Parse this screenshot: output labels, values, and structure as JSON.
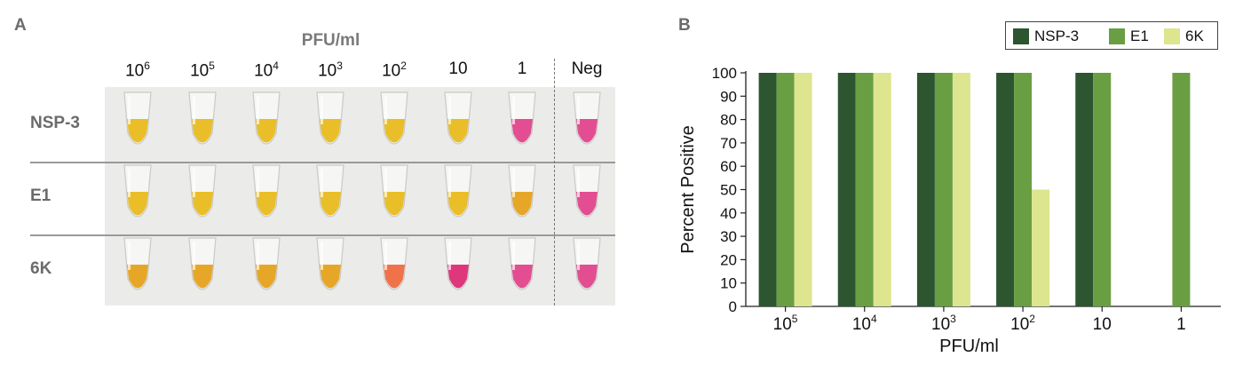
{
  "panel_a": {
    "letter": "A",
    "title": "PFU/ml",
    "columns": [
      {
        "base": "10",
        "exp": "6"
      },
      {
        "base": "10",
        "exp": "5"
      },
      {
        "base": "10",
        "exp": "4"
      },
      {
        "base": "10",
        "exp": "3"
      },
      {
        "base": "10",
        "exp": "2"
      },
      {
        "base": "10",
        "exp": ""
      },
      {
        "base": "1",
        "exp": ""
      },
      {
        "base": "Neg",
        "exp": ""
      }
    ],
    "rows": [
      "NSP-3",
      "E1",
      "6K"
    ],
    "tube_colors": [
      [
        "yellow",
        "yellow",
        "yellow",
        "yellow",
        "yellow",
        "yellow",
        "pink",
        "pink"
      ],
      [
        "yellow",
        "yellow",
        "yellow",
        "yellow",
        "yellow",
        "yellow",
        "orange",
        "pink"
      ],
      [
        "orange",
        "orange",
        "orange",
        "orange",
        "red-orange",
        "magenta",
        "pink",
        "pink"
      ]
    ],
    "colors": {
      "yellow": "#e8bb1c",
      "orange": "#e5a21e",
      "red-orange": "#ef6a40",
      "magenta": "#dd2c75",
      "pink": "#e0458b"
    }
  },
  "panel_b": {
    "letter": "B"
  },
  "chart_data": {
    "type": "bar",
    "categories": [
      {
        "base": "10",
        "exp": "5"
      },
      {
        "base": "10",
        "exp": "4"
      },
      {
        "base": "10",
        "exp": "3"
      },
      {
        "base": "10",
        "exp": "2"
      },
      {
        "base": "10",
        "exp": ""
      },
      {
        "base": "1",
        "exp": ""
      }
    ],
    "series": [
      {
        "name": "NSP-3",
        "color": "#2c5530",
        "values": [
          100,
          100,
          100,
          100,
          100,
          0
        ]
      },
      {
        "name": "E1",
        "color": "#6a9e43",
        "values": [
          100,
          100,
          100,
          100,
          100,
          100
        ]
      },
      {
        "name": "6K",
        "color": "#dde58f",
        "values": [
          100,
          100,
          100,
          50,
          0,
          0
        ]
      }
    ],
    "xlabel": "PFU/ml",
    "ylabel": "Percent Positive",
    "ylim": [
      0,
      100
    ],
    "yticks": [
      0,
      10,
      20,
      30,
      40,
      50,
      60,
      70,
      80,
      90,
      100
    ],
    "legend_position": "top-right",
    "grid": false
  }
}
